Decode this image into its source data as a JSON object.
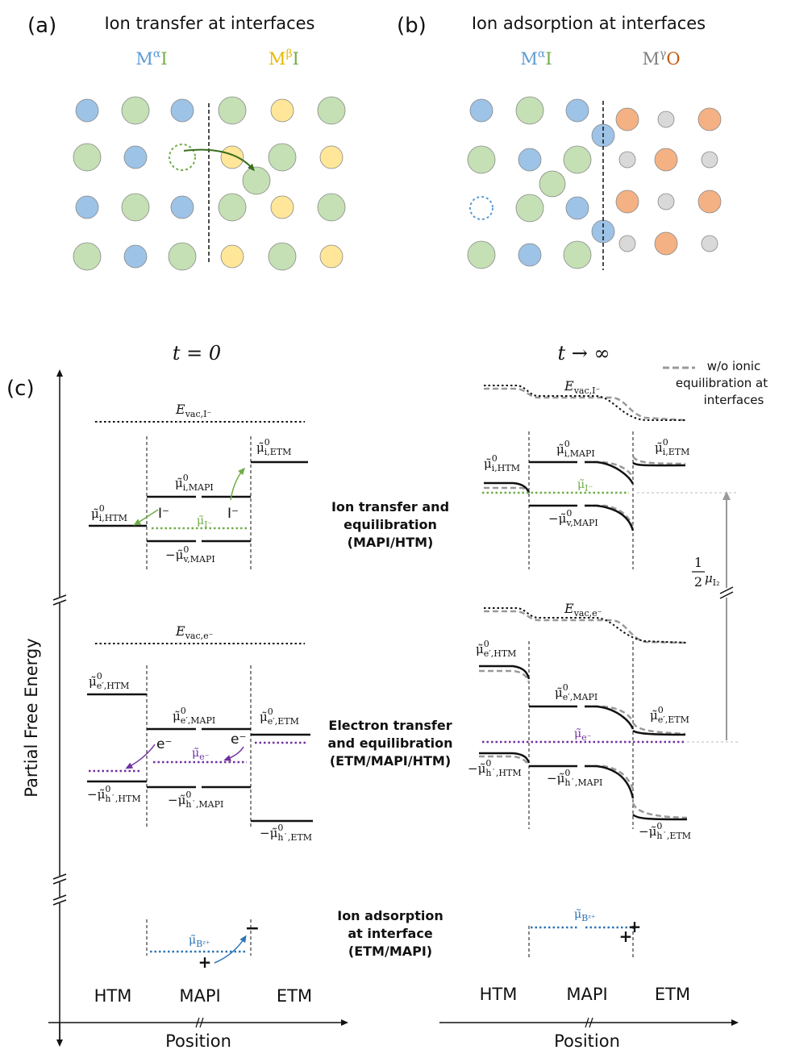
{
  "panel_a": {
    "tag": "(a)",
    "title": "Ion transfer at interfaces",
    "left_phase": "M",
    "left_sup": "α",
    "left_anion": "I",
    "right_phase": "M",
    "right_sup": "β",
    "right_anion": "I"
  },
  "panel_b": {
    "tag": "(b)",
    "title": "Ion adsorption at interfaces",
    "left_phase": "M",
    "left_sup": "α",
    "left_anion": "I",
    "right_phase": "M",
    "right_sup": "γ",
    "right_anion": "O"
  },
  "panel_c": {
    "tag": "(c)",
    "t0": "t = 0",
    "tinf": "t → ∞",
    "y_axis_label": "Partial Free Energy",
    "x_axis_label": "Position",
    "regions": [
      "HTM",
      "MAPI",
      "ETM"
    ],
    "legend_dashed": [
      "w/o ionic",
      "equilibration at",
      "interfaces"
    ],
    "half": "1",
    "two": "2",
    "mu_i2": "μ",
    "mu_i2_sub": "I₂",
    "ion_section": {
      "evac": "E",
      "evac_sub": "vac,I⁻",
      "mu_i_htm": "μ̃",
      "mu_i_htm_sub": "i,HTM",
      "mu_i_mapi": "μ̃",
      "mu_i_mapi_sub": "i,MAPI",
      "mu_i_etm": "μ̃",
      "mu_i_etm_sub": "i,ETM",
      "mu_v_mapi": "−μ̃",
      "mu_v_mapi_sub": "v,MAPI",
      "mu_ion": "μ̃",
      "mu_ion_sub": "I⁻",
      "ion_left": "I⁻",
      "ion_right": "I⁻",
      "annotation": [
        "Ion transfer and",
        "equilibration",
        "(MAPI/HTM)"
      ]
    },
    "electron_section": {
      "evac": "E",
      "evac_sub": "vac,e⁻",
      "mu_e_htm": "μ̃",
      "mu_e_htm_sub": "e′,HTM",
      "mu_e_mapi": "μ̃",
      "mu_e_mapi_sub": "e′,MAPI",
      "mu_e_etm": "μ̃",
      "mu_e_etm_sub": "e′,ETM",
      "mu_h_htm": "−μ̃",
      "mu_h_htm_sub": "h˙,HTM",
      "mu_h_mapi": "−μ̃",
      "mu_h_mapi_sub": "h˙,MAPI",
      "mu_h_etm": "−μ̃",
      "mu_h_etm_sub": "h˙,ETM",
      "mu_el": "μ̃",
      "mu_el_sub": "e⁻",
      "el_left": "e⁻",
      "el_right": "e⁻",
      "annotation": [
        "Electron transfer",
        "and equilibration",
        "(ETM/MAPI/HTM)"
      ]
    },
    "adsorption_section": {
      "mu_b": "μ̃",
      "mu_b_sub": "Bᶻ⁺",
      "plus": "+",
      "minus": "−",
      "annotation": [
        "Ion adsorption",
        "at interface",
        "(ETM/MAPI)"
      ]
    },
    "sup0": "0"
  },
  "colors": {
    "blue": "#9dc3e6",
    "green": "#c5e0b4",
    "yellow": "#ffe699",
    "orange": "#f4b183",
    "grey": "#d9d9d9",
    "ion_green": "#70ad47",
    "electron_purple": "#7030a0",
    "adsorption_blue": "#2e75b6"
  }
}
